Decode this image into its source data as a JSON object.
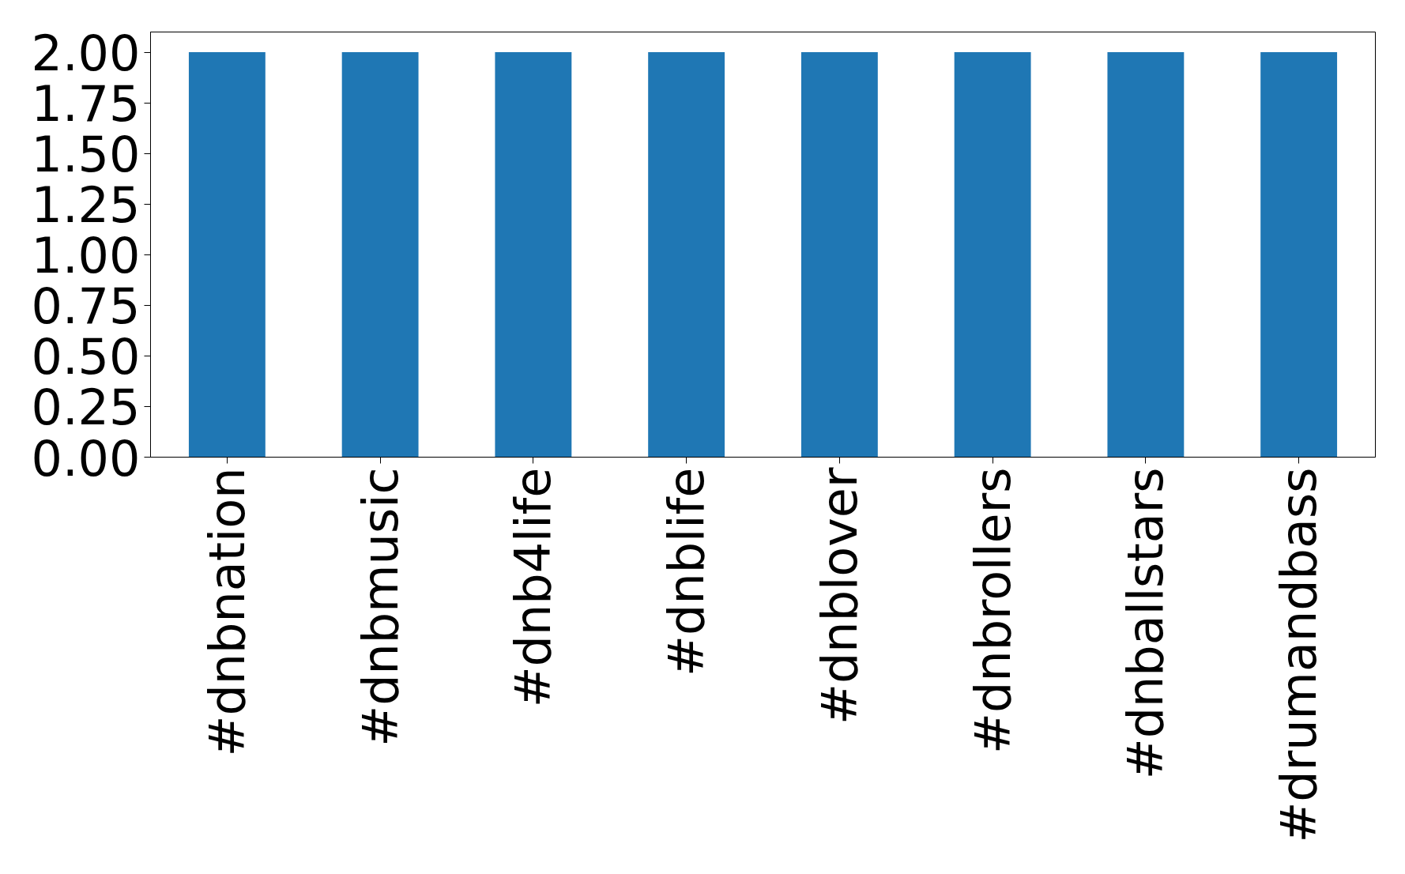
{
  "chart_data": {
    "type": "bar",
    "categories": [
      "#dnbnation",
      "#dnbmusic",
      "#dnb4life",
      "#dnblife",
      "#dnblover",
      "#dnbrollers",
      "#dnballstars",
      "#drumandbass"
    ],
    "values": [
      2,
      2,
      2,
      2,
      2,
      2,
      2,
      2
    ],
    "color": "#1f77b4",
    "ylim": [
      0,
      2.1
    ],
    "yticks": [
      {
        "value": 0,
        "label": "0.00"
      },
      {
        "value": 0.25,
        "label": "0.25"
      },
      {
        "value": 0.5,
        "label": "0.50"
      },
      {
        "value": 0.75,
        "label": "0.75"
      },
      {
        "value": 1,
        "label": "1.00"
      },
      {
        "value": 1.25,
        "label": "1.25"
      },
      {
        "value": 1.5,
        "label": "1.50"
      },
      {
        "value": 1.75,
        "label": "1.75"
      },
      {
        "value": 2,
        "label": "2.00"
      }
    ],
    "grid": false
  }
}
